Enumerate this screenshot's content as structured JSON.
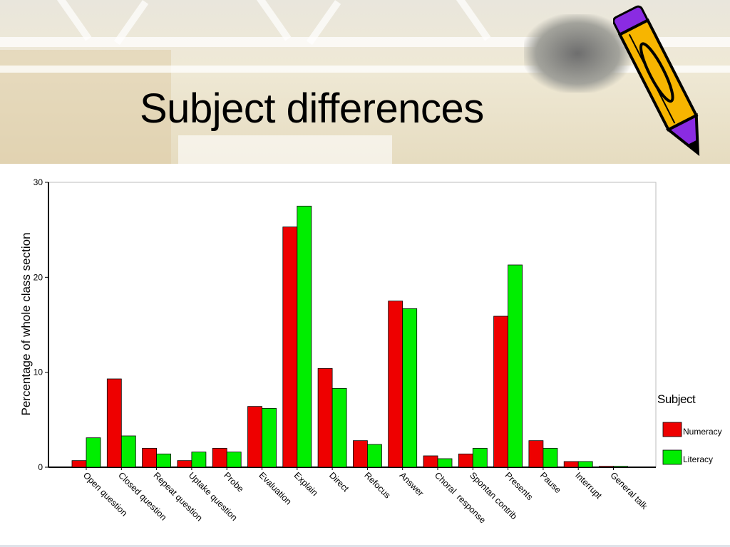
{
  "slide": {
    "title": "Subject differences"
  },
  "icons": {
    "pencil": "pencil-icon"
  },
  "colors": {
    "numeracy": "#ee0000",
    "literacy": "#00ee00"
  },
  "chart_data": {
    "type": "bar",
    "title": "",
    "xlabel": "",
    "ylabel": "Percentage of whole class section",
    "ylim": [
      0,
      30
    ],
    "yticks": [
      0,
      10,
      20,
      30
    ],
    "legend_position": "right",
    "legend_title": "Subject",
    "grid": false,
    "categories": [
      "Open question",
      "Closed question",
      "Repeat question",
      "Uptake question",
      "Probe",
      "Evaluation",
      "Explain",
      "Direct",
      "Refocus",
      "Answer",
      "Choral  response",
      "Spontan contrib",
      "Presents",
      "Pause",
      "Interrupt",
      "General talk"
    ],
    "series": [
      {
        "name": "Numeracy",
        "color": "#ee0000",
        "values": [
          0.7,
          9.3,
          2.0,
          0.7,
          2.0,
          6.4,
          25.3,
          10.4,
          2.8,
          17.5,
          1.2,
          1.4,
          15.9,
          2.8,
          0.6,
          0.1
        ]
      },
      {
        "name": "Literacy",
        "color": "#00ee00",
        "values": [
          3.1,
          3.3,
          1.4,
          1.6,
          1.6,
          6.2,
          27.5,
          8.3,
          2.4,
          16.7,
          0.9,
          2.0,
          21.3,
          2.0,
          0.6,
          0.1
        ]
      }
    ]
  }
}
